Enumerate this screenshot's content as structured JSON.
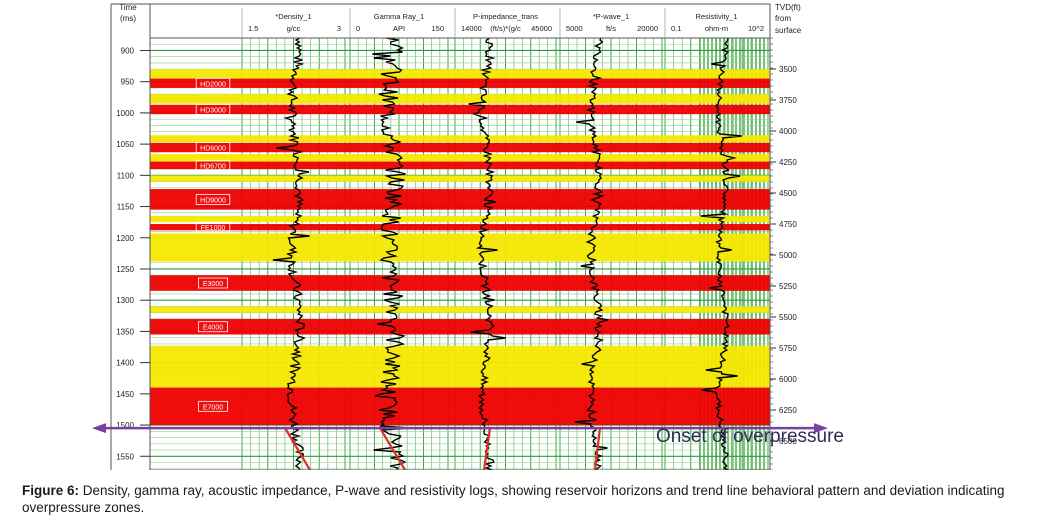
{
  "chart_data": {
    "type": "well-log",
    "time_axis": {
      "label": "Time\n(ms)",
      "ticks": [
        900,
        950,
        1000,
        1050,
        1100,
        1150,
        1200,
        1250,
        1300,
        1350,
        1400,
        1450,
        1500,
        1550
      ],
      "range": [
        880,
        1572
      ]
    },
    "depth_axis": {
      "label": "TVD(ft)\nfrom\nsurface",
      "ticks": [
        3500,
        3750,
        4000,
        4250,
        4500,
        4750,
        5000,
        5250,
        5500,
        5750,
        6000,
        6250,
        6500
      ]
    },
    "tracks": [
      {
        "name": "*Density_1",
        "unit": "g/cc",
        "scale_min": "1.5",
        "scale_max": "3"
      },
      {
        "name": "Gamma Ray_1",
        "unit": "API",
        "scale_min": "0",
        "scale_max": "150"
      },
      {
        "name": "P-impedance_trans",
        "unit": "(ft/s)*(g/c",
        "scale_min": "14000",
        "scale_max": "45000"
      },
      {
        "name": "*P-wave_1",
        "unit": "ft/s",
        "scale_min": "5000",
        "scale_max": "20000"
      },
      {
        "name": "Resistivity_1",
        "unit": "ohm-m",
        "scale_min": "0.1",
        "scale_max": "10^2"
      }
    ],
    "horizons": [
      {
        "color": "#f5e800",
        "t0": 930,
        "t1": 945,
        "label": ""
      },
      {
        "color": "#ee0000",
        "t0": 945,
        "t1": 960,
        "label": "HD2000"
      },
      {
        "color": "#f5e800",
        "t0": 970,
        "t1": 985,
        "label": ""
      },
      {
        "color": "#ee0000",
        "t0": 987,
        "t1": 1002,
        "label": "HD3000"
      },
      {
        "color": "#f5e800",
        "t0": 1036,
        "t1": 1047,
        "label": ""
      },
      {
        "color": "#ee0000",
        "t0": 1048,
        "t1": 1063,
        "label": "HD6000"
      },
      {
        "color": "#f5e800",
        "t0": 1066,
        "t1": 1078,
        "label": ""
      },
      {
        "color": "#ee0000",
        "t0": 1078,
        "t1": 1090,
        "label": "HD6700"
      },
      {
        "color": "#f5e800",
        "t0": 1100,
        "t1": 1110,
        "label": ""
      },
      {
        "color": "#ee0000",
        "t0": 1122,
        "t1": 1155,
        "label": "HD9000"
      },
      {
        "color": "#f5e800",
        "t0": 1165,
        "t1": 1175,
        "label": ""
      },
      {
        "color": "#ee0000",
        "t0": 1178,
        "t1": 1188,
        "label": "FE1000"
      },
      {
        "color": "#f5e800",
        "t0": 1193,
        "t1": 1238,
        "label": ""
      },
      {
        "color": "#ee0000",
        "t0": 1260,
        "t1": 1285,
        "label": "E3000"
      },
      {
        "color": "#f5e800",
        "t0": 1310,
        "t1": 1320,
        "label": ""
      },
      {
        "color": "#ee0000",
        "t0": 1330,
        "t1": 1355,
        "label": "E4000"
      },
      {
        "color": "#f5e800",
        "t0": 1373,
        "t1": 1440,
        "label": ""
      },
      {
        "color": "#ee0000",
        "t0": 1440,
        "t1": 1500,
        "label": "E7000"
      }
    ],
    "overpressure_onset_time": 1505,
    "annotation": "Onset of overpressure"
  },
  "caption": {
    "label": "Figure 6:",
    "text": " Density, gamma ray, acoustic impedance, P-wave and resistivity logs, showing reservoir horizons and trend line behavioral pattern and deviation indicating overpressure zones."
  }
}
